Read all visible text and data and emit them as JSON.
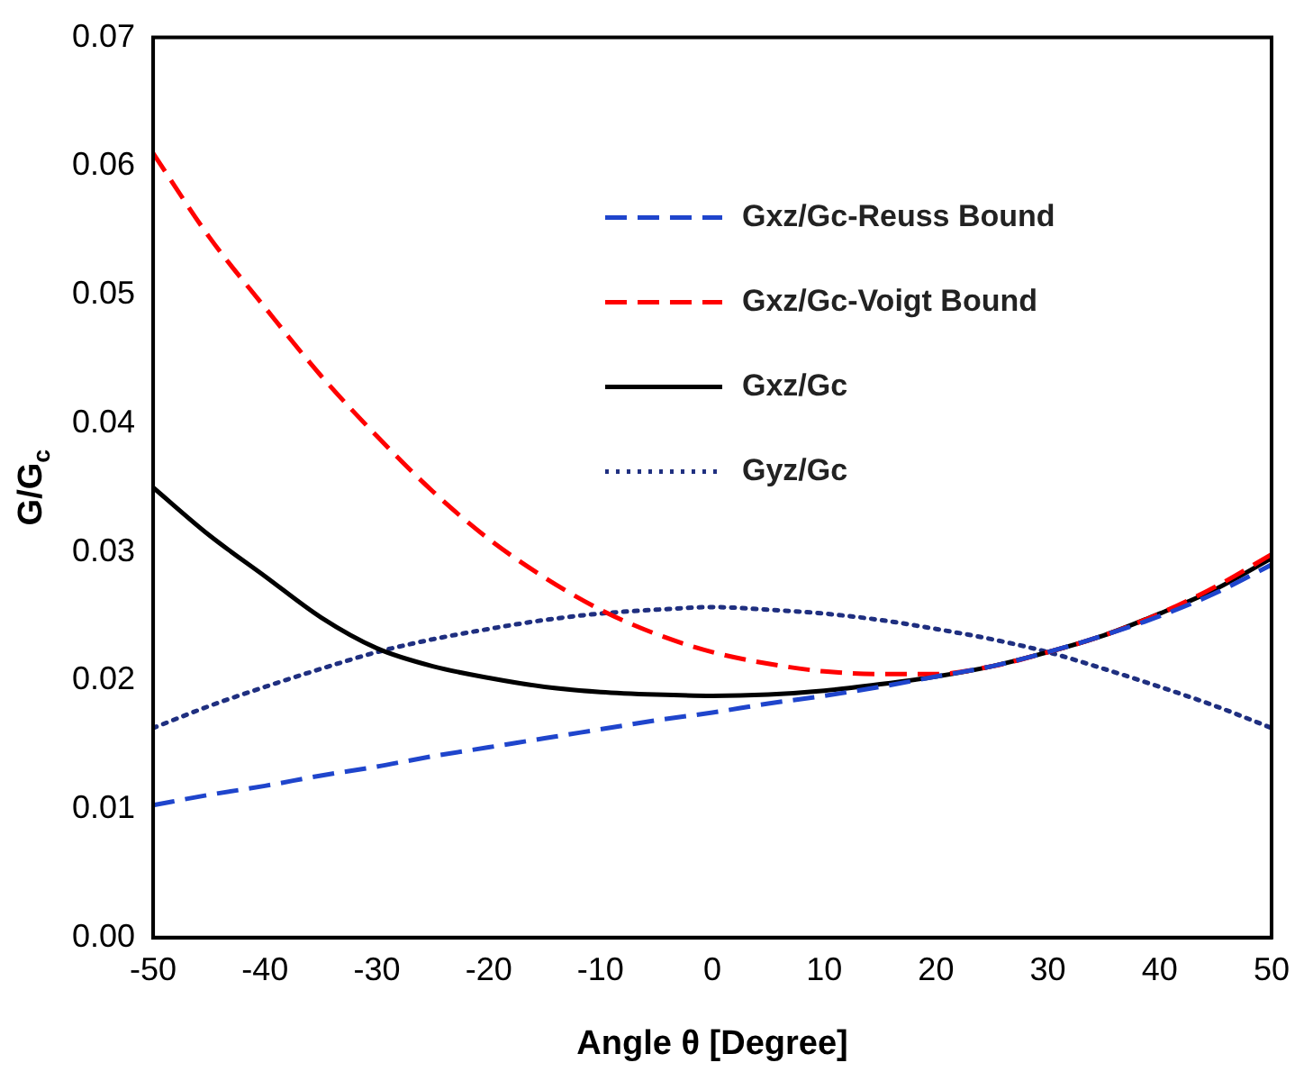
{
  "chart_data": {
    "type": "line",
    "xlabel": "Angle θ [Degree]",
    "ylabel": "G/G$_{c}$",
    "x": [
      -50,
      -45,
      -40,
      -35,
      -30,
      -25,
      -20,
      -15,
      -10,
      -5,
      0,
      5,
      10,
      15,
      20,
      25,
      30,
      35,
      40,
      45,
      50
    ],
    "xlim": [
      -50,
      50
    ],
    "xticks": [
      -50,
      -40,
      -30,
      -20,
      -10,
      0,
      10,
      20,
      30,
      40,
      50
    ],
    "ylim": [
      0,
      0.07
    ],
    "yticks": [
      {
        "value": 0,
        "label": "0.00"
      },
      {
        "value": 0.01,
        "label": "0.01"
      },
      {
        "value": 0.02,
        "label": "0.02"
      },
      {
        "value": 0.03,
        "label": "0.03"
      },
      {
        "value": 0.04,
        "label": "0.04"
      },
      {
        "value": 0.05,
        "label": "0.05"
      },
      {
        "value": 0.06,
        "label": "0.06"
      },
      {
        "value": 0.07,
        "label": "0.07"
      }
    ],
    "grid": false,
    "legend": "top right",
    "marker": "none",
    "series": [
      {
        "name": "Gxz/Gc-Reuss Bound",
        "color": "#1f45cc",
        "line_style": "dashed",
        "values": [
          0.0103,
          0.0111,
          0.0118,
          0.0126,
          0.0133,
          0.0141,
          0.0148,
          0.0155,
          0.0162,
          0.0169,
          0.0175,
          0.0182,
          0.0188,
          0.0195,
          0.0203,
          0.0211,
          0.0222,
          0.0235,
          0.025,
          0.0268,
          0.029
        ]
      },
      {
        "name": "Gxz/Gc-Voigt Bound",
        "color": "#ff0000",
        "line_style": "dashed",
        "values": [
          0.061,
          0.0545,
          0.049,
          0.0437,
          0.039,
          0.0347,
          0.031,
          0.028,
          0.0255,
          0.0236,
          0.0222,
          0.0213,
          0.0207,
          0.0205,
          0.0205,
          0.0211,
          0.0222,
          0.0235,
          0.0252,
          0.0273,
          0.0298
        ]
      },
      {
        "name": "Gxz/Gc",
        "color": "#000000",
        "line_style": "solid",
        "values": [
          0.035,
          0.0313,
          0.0281,
          0.0249,
          0.0225,
          0.0211,
          0.0202,
          0.0195,
          0.0191,
          0.0189,
          0.0188,
          0.0189,
          0.0192,
          0.0197,
          0.0203,
          0.0211,
          0.0222,
          0.0235,
          0.0252,
          0.0271,
          0.0295
        ]
      },
      {
        "name": "Gyz/Gc",
        "color": "#1f2f80",
        "line_style": "dotted",
        "values": [
          0.0163,
          0.018,
          0.0195,
          0.0209,
          0.0222,
          0.0232,
          0.024,
          0.0247,
          0.0252,
          0.0255,
          0.0257,
          0.0255,
          0.0252,
          0.0247,
          0.024,
          0.0232,
          0.0222,
          0.0209,
          0.0195,
          0.018,
          0.0163
        ]
      }
    ]
  }
}
